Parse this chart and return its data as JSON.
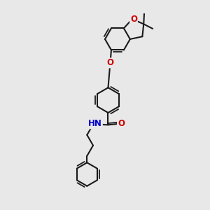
{
  "bg_color": "#e8e8e8",
  "bond_color": "#1a1a1a",
  "bond_width": 1.5,
  "O_color": "#cc0000",
  "N_color": "#0000cc",
  "font_size": 8.5,
  "figsize": [
    3.0,
    3.0
  ],
  "dpi": 100,
  "xlim": [
    0,
    10
  ],
  "ylim": [
    0,
    10
  ]
}
